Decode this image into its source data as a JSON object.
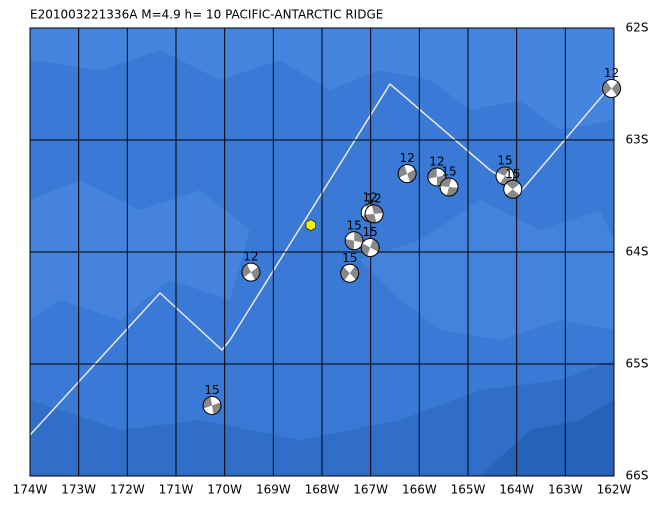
{
  "map": {
    "title": "E201003221336A M=4.9 h= 10 PACIFIC-ANTARCTIC RIDGE",
    "xlim": [
      -174,
      -162
    ],
    "ylim": [
      -66,
      -62
    ],
    "xticks": [
      {
        "value": -174,
        "label": "174W"
      },
      {
        "value": -173,
        "label": "173W"
      },
      {
        "value": -172,
        "label": "172W"
      },
      {
        "value": -171,
        "label": "171W"
      },
      {
        "value": -170,
        "label": "170W"
      },
      {
        "value": -169,
        "label": "169W"
      },
      {
        "value": -168,
        "label": "168W"
      },
      {
        "value": -167,
        "label": "167W"
      },
      {
        "value": -166,
        "label": "166W"
      },
      {
        "value": -165,
        "label": "165W"
      },
      {
        "value": -164,
        "label": "164W"
      },
      {
        "value": -163,
        "label": "163W"
      },
      {
        "value": -162,
        "label": "162W"
      }
    ],
    "yticks": [
      {
        "value": -62,
        "label": "62S"
      },
      {
        "value": -63,
        "label": "63S"
      },
      {
        "value": -64,
        "label": "64S"
      },
      {
        "value": -65,
        "label": "65S"
      },
      {
        "value": -66,
        "label": "66S"
      }
    ],
    "epicenter": {
      "lon": -168.23,
      "lat": -63.76,
      "color": "#ffee00"
    },
    "events": [
      {
        "lon": -162.05,
        "lat": -62.54,
        "depth": 12
      },
      {
        "lon": -166.25,
        "lat": -63.3,
        "depth": 12
      },
      {
        "lon": -165.64,
        "lat": -63.33,
        "depth": 12
      },
      {
        "lon": -165.39,
        "lat": -63.42,
        "depth": 15
      },
      {
        "lon": -164.24,
        "lat": -63.32,
        "depth": 15
      },
      {
        "lon": -164.08,
        "lat": -63.44,
        "depth": 15
      },
      {
        "lon": -167.01,
        "lat": -63.65,
        "depth": 12
      },
      {
        "lon": -166.93,
        "lat": -63.66,
        "depth": 12
      },
      {
        "lon": -167.34,
        "lat": -63.9,
        "depth": 15
      },
      {
        "lon": -167.01,
        "lat": -63.96,
        "depth": 15
      },
      {
        "lon": -167.43,
        "lat": -64.19,
        "depth": 15
      },
      {
        "lon": -169.46,
        "lat": -64.18,
        "depth": 12
      },
      {
        "lon": -170.26,
        "lat": -65.37,
        "depth": 15
      }
    ]
  }
}
